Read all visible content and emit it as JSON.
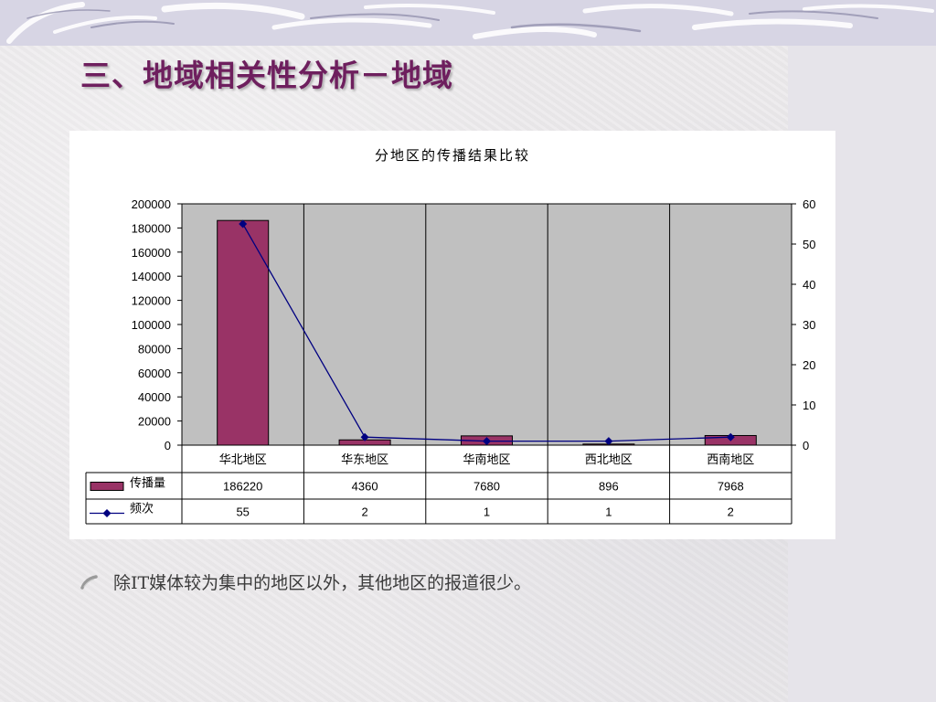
{
  "slide": {
    "title": "三、地域相关性分析－地域",
    "bullet": "除IT媒体较为集中的地区以外，其他地区的报道很少。"
  },
  "chart_data": {
    "type": "bar",
    "title": "分地区的传播结果比较",
    "categories": [
      "华北地区",
      "华东地区",
      "华南地区",
      "西北地区",
      "西南地区"
    ],
    "series": [
      {
        "name": "传播量",
        "type": "bar",
        "axis": "left",
        "values": [
          186220,
          4360,
          7680,
          896,
          7968
        ],
        "color": "#993366"
      },
      {
        "name": "频次",
        "type": "line",
        "axis": "right",
        "values": [
          55,
          2,
          1,
          1,
          2
        ],
        "color": "#000080"
      }
    ],
    "y_left": {
      "min": 0,
      "max": 200000,
      "step": 20000
    },
    "y_right": {
      "min": 0,
      "max": 60,
      "step": 10
    },
    "plot_background": "#c0c0c0",
    "data_table": true,
    "legend": "data-table"
  }
}
